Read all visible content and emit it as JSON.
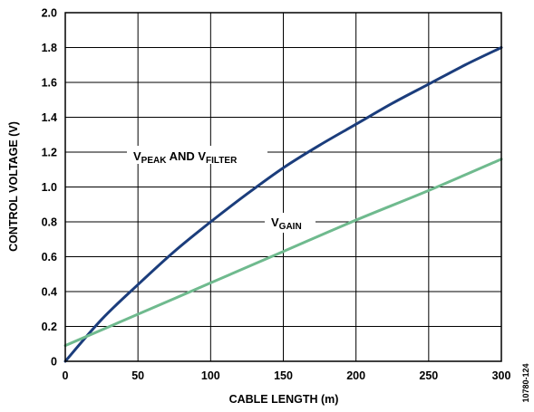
{
  "chart_data": {
    "type": "line",
    "xlabel": "CABLE LENGTH (m)",
    "ylabel": "CONTROL VOLTAGE (V)",
    "xlim": [
      0,
      300
    ],
    "ylim": [
      0,
      2.0
    ],
    "x_ticks": [
      "0",
      "50",
      "100",
      "150",
      "200",
      "250",
      "300"
    ],
    "y_ticks": [
      "0",
      "0.2",
      "0.4",
      "0.6",
      "0.8",
      "1.0",
      "1.2",
      "1.4",
      "1.6",
      "1.8",
      "2.0"
    ],
    "grid": true,
    "series": [
      {
        "name": "VPEAK AND VFILTER",
        "color": "#1b3d7c",
        "x": [
          0,
          25,
          50,
          75,
          100,
          125,
          150,
          175,
          200,
          225,
          250,
          275,
          300
        ],
        "y": [
          0.0,
          0.24,
          0.44,
          0.63,
          0.8,
          0.96,
          1.11,
          1.24,
          1.36,
          1.48,
          1.59,
          1.7,
          1.8
        ]
      },
      {
        "name": "VGAIN",
        "color": "#6fba8e",
        "x": [
          0,
          50,
          100,
          150,
          200,
          250,
          300
        ],
        "y": [
          0.09,
          0.27,
          0.45,
          0.63,
          0.81,
          0.98,
          1.16
        ]
      }
    ],
    "labels": {
      "peak": {
        "main": "V",
        "sub1": "PEAK",
        "mid": " AND V",
        "sub2": "FILTER"
      },
      "gain": {
        "main": "V",
        "sub": "GAIN"
      }
    }
  },
  "figure_id": "10780-124"
}
